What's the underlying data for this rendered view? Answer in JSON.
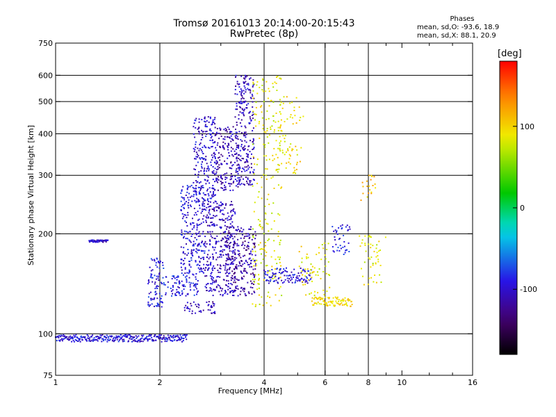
{
  "header": {
    "title": "Tromsø 20161013 20:14:00-20:15:43",
    "subtitle": "RwPretec (8p)"
  },
  "phases_box": {
    "heading": "Phases",
    "line_o": "mean, sd,O: -93.6, 18.9",
    "line_x": "mean, sd,X:  88.1, 20.9"
  },
  "colorbar": {
    "unit": "[deg]",
    "ticks": [
      "100",
      "0",
      "-100"
    ],
    "tick_values": [
      100,
      0,
      -100
    ],
    "range": [
      -180,
      180
    ],
    "colormap": "rainbow"
  },
  "chart_data": {
    "type": "scatter",
    "xlabel": "Frequency [MHz]",
    "ylabel": "Stationary phase Virtual Height [km]",
    "xscale": "log",
    "yscale": "log",
    "xlim": [
      1,
      16
    ],
    "ylim": [
      75,
      750
    ],
    "xticks": [
      1,
      2,
      4,
      6,
      8,
      10,
      16
    ],
    "xtick_labels": [
      "1",
      "2",
      "4",
      "6",
      "8",
      "10",
      "16"
    ],
    "yticks": [
      75,
      100,
      200,
      300,
      400,
      500,
      600,
      750
    ],
    "ytick_labels": [
      "75",
      "100",
      "200",
      "300",
      "400",
      "500",
      "600",
      "750"
    ],
    "x_gridlines": [
      2,
      4,
      6,
      8
    ],
    "y_gridlines": [
      100,
      200,
      300,
      400,
      500,
      600
    ],
    "grid": true,
    "clusters": [
      {
        "x": [
          1.0,
          2.4
        ],
        "y": [
          94,
          100
        ],
        "phase": -95,
        "kind": "trace"
      },
      {
        "x": [
          1.25,
          1.42
        ],
        "y": [
          188,
          192
        ],
        "phase": -100,
        "kind": "trace"
      },
      {
        "x": [
          1.85,
          2.05
        ],
        "y": [
          120,
          170
        ],
        "phase": -90,
        "kind": "fill"
      },
      {
        "x": [
          2.05,
          2.6
        ],
        "y": [
          130,
          150
        ],
        "phase": -90,
        "kind": "fill"
      },
      {
        "x": [
          2.3,
          2.7
        ],
        "y": [
          150,
          280
        ],
        "phase": -95,
        "kind": "fill"
      },
      {
        "x": [
          2.5,
          2.9
        ],
        "y": [
          250,
          450
        ],
        "phase": -100,
        "kind": "fill"
      },
      {
        "x": [
          2.35,
          2.9
        ],
        "y": [
          115,
          125
        ],
        "phase": -110,
        "kind": "fill"
      },
      {
        "x": [
          2.7,
          3.3
        ],
        "y": [
          130,
          250
        ],
        "phase": -105,
        "kind": "fill"
      },
      {
        "x": [
          2.9,
          3.4
        ],
        "y": [
          270,
          420
        ],
        "phase": -110,
        "kind": "fill"
      },
      {
        "x": [
          3.1,
          3.8
        ],
        "y": [
          130,
          210
        ],
        "phase": -115,
        "kind": "fill"
      },
      {
        "x": [
          3.3,
          3.75
        ],
        "y": [
          280,
          600
        ],
        "phase": -105,
        "kind": "fill"
      },
      {
        "x": [
          3.7,
          4.5
        ],
        "y": [
          120,
          600
        ],
        "phase": 85,
        "kind": "sparse"
      },
      {
        "x": [
          4.4,
          5.2
        ],
        "y": [
          300,
          520
        ],
        "phase": 95,
        "kind": "sparse"
      },
      {
        "x": [
          4.0,
          5.5
        ],
        "y": [
          140,
          160
        ],
        "phase": -95,
        "kind": "trace"
      },
      {
        "x": [
          5.0,
          6.2
        ],
        "y": [
          130,
          190
        ],
        "phase": 90,
        "kind": "sparse"
      },
      {
        "x": [
          5.5,
          7.2
        ],
        "y": [
          120,
          130
        ],
        "phase": 100,
        "kind": "trace"
      },
      {
        "x": [
          6.3,
          7.1
        ],
        "y": [
          165,
          220
        ],
        "phase": -90,
        "kind": "trace"
      },
      {
        "x": [
          7.5,
          9.0
        ],
        "y": [
          140,
          200
        ],
        "phase": 85,
        "kind": "sparse"
      },
      {
        "x": [
          7.6,
          8.4
        ],
        "y": [
          250,
          300
        ],
        "phase": 110,
        "kind": "sparse"
      }
    ]
  }
}
